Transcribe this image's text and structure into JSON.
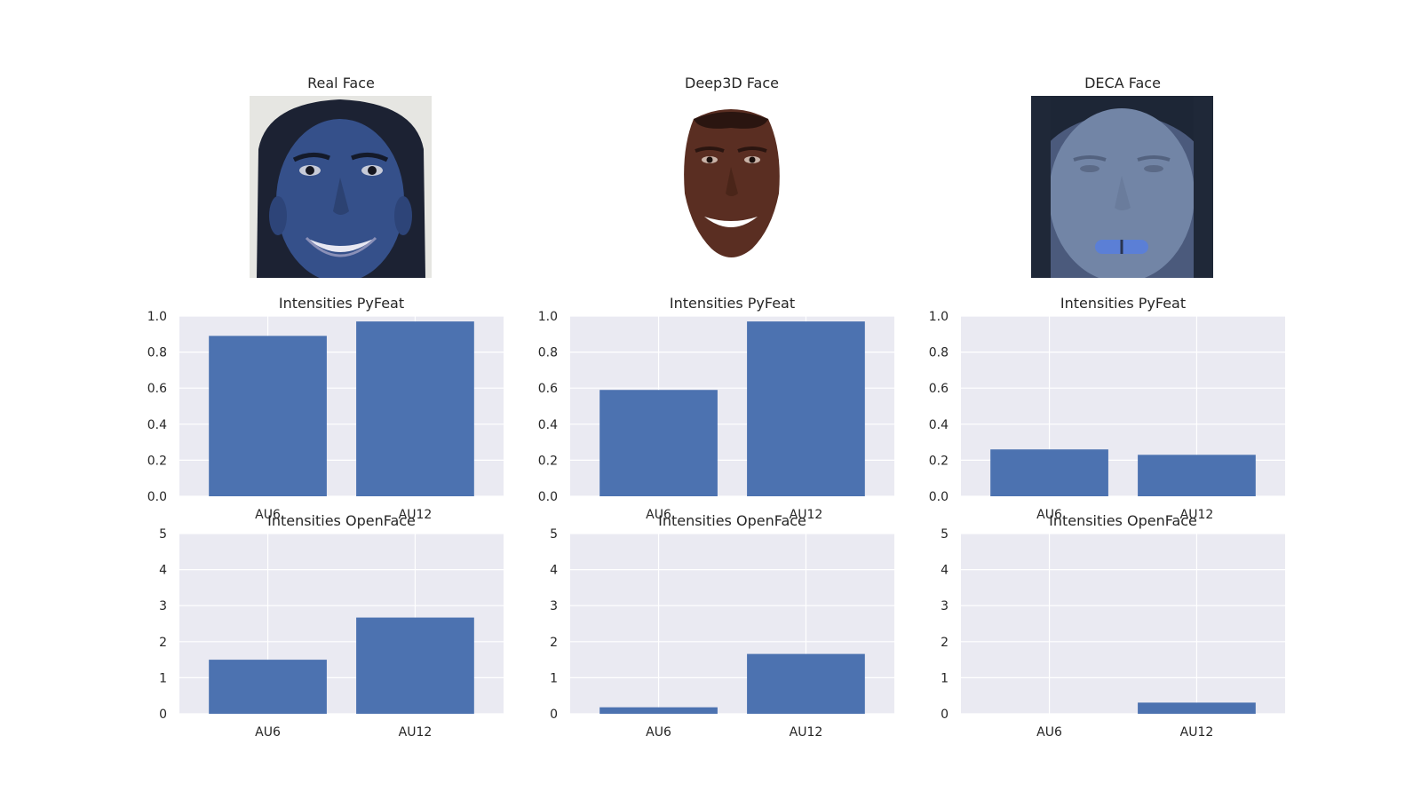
{
  "faces": [
    {
      "title": "Real Face"
    },
    {
      "title": "Deep3D Face"
    },
    {
      "title": "DECA Face"
    }
  ],
  "colors": {
    "bar": "#4c72b0",
    "axes_background": "#eaeaf2",
    "grid": "#ffffff"
  },
  "chart_data": [
    {
      "type": "bar",
      "title": "Intensities PyFeat",
      "categories": [
        "AU6",
        "AU12"
      ],
      "values": [
        0.89,
        0.97
      ],
      "ylim": [
        0,
        1.0
      ],
      "yticks": [
        "0.0",
        "0.2",
        "0.4",
        "0.6",
        "0.8",
        "1.0"
      ],
      "grid": true,
      "xlabel": "",
      "ylabel": ""
    },
    {
      "type": "bar",
      "title": "Intensities PyFeat",
      "categories": [
        "AU6",
        "AU12"
      ],
      "values": [
        0.59,
        0.97
      ],
      "ylim": [
        0,
        1.0
      ],
      "yticks": [
        "0.0",
        "0.2",
        "0.4",
        "0.6",
        "0.8",
        "1.0"
      ],
      "grid": true,
      "xlabel": "",
      "ylabel": ""
    },
    {
      "type": "bar",
      "title": "Intensities PyFeat",
      "categories": [
        "AU6",
        "AU12"
      ],
      "values": [
        0.26,
        0.23
      ],
      "ylim": [
        0,
        1.0
      ],
      "yticks": [
        "0.0",
        "0.2",
        "0.4",
        "0.6",
        "0.8",
        "1.0"
      ],
      "grid": true,
      "xlabel": "",
      "ylabel": ""
    },
    {
      "type": "bar",
      "title": "Intensities OpenFace",
      "categories": [
        "AU6",
        "AU12"
      ],
      "values": [
        1.5,
        2.67
      ],
      "ylim": [
        0,
        5
      ],
      "yticks": [
        "0",
        "1",
        "2",
        "3",
        "4",
        "5"
      ],
      "grid": true,
      "xlabel": "",
      "ylabel": ""
    },
    {
      "type": "bar",
      "title": "Intensities OpenFace",
      "categories": [
        "AU6",
        "AU12"
      ],
      "values": [
        0.18,
        1.66
      ],
      "ylim": [
        0,
        5
      ],
      "yticks": [
        "0",
        "1",
        "2",
        "3",
        "4",
        "5"
      ],
      "grid": true,
      "xlabel": "",
      "ylabel": ""
    },
    {
      "type": "bar",
      "title": "Intensities OpenFace",
      "categories": [
        "AU6",
        "AU12"
      ],
      "values": [
        0.0,
        0.31
      ],
      "ylim": [
        0,
        5
      ],
      "yticks": [
        "0",
        "1",
        "2",
        "3",
        "4",
        "5"
      ],
      "grid": true,
      "xlabel": "",
      "ylabel": ""
    }
  ]
}
